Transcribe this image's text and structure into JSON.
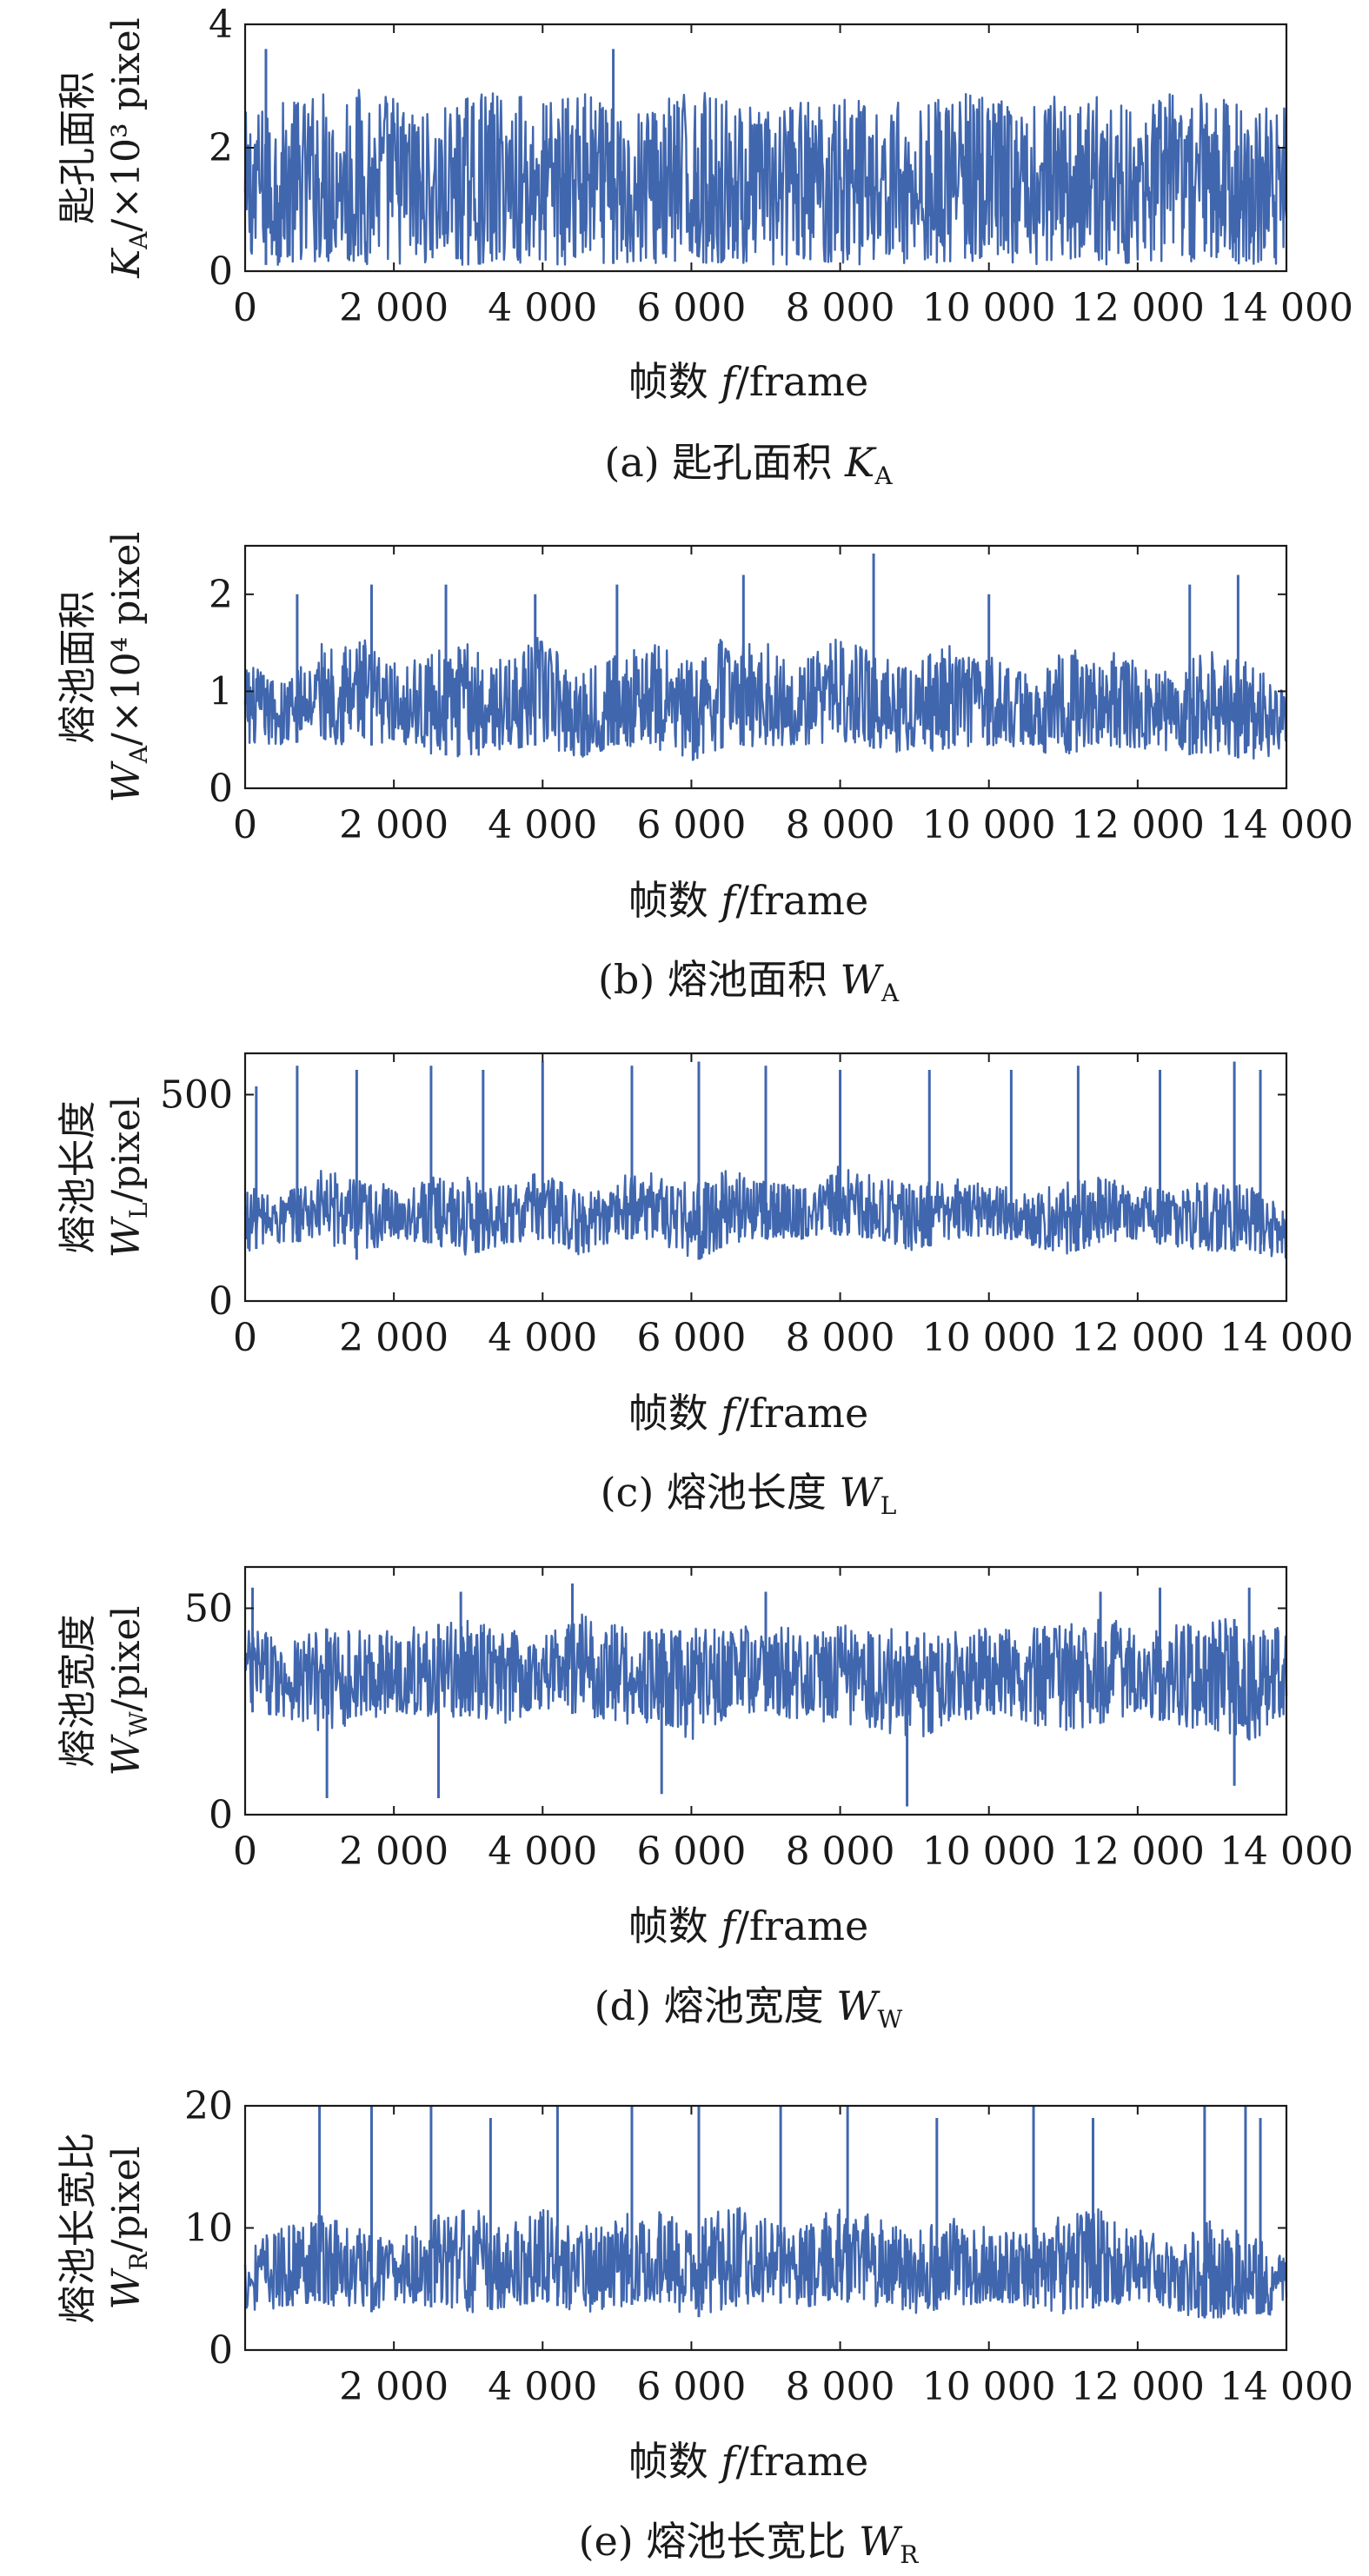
{
  "figure": {
    "x_tick_labels": [
      "0",
      "2 000",
      "4 000",
      "6 000",
      "8 000",
      "10 000",
      "12 000",
      "14 000"
    ]
  },
  "chart_data": [
    {
      "type": "line",
      "panel": "a",
      "ylabel_line1": "匙孔面积",
      "ylabel_var": "K",
      "ylabel_sub": "A",
      "ylabel_unit": "/×10³ pixel",
      "xlabel_prefix": "帧数 ",
      "xlabel_var": "f",
      "xlabel_unit": "/frame",
      "caption_prefix": "(a) 匙孔面积 ",
      "caption_var": "K",
      "caption_sub": "A",
      "xlim": [
        0,
        14000
      ],
      "ylim": [
        0,
        4
      ],
      "yticks": [
        0,
        2,
        4
      ],
      "ytick_labels": [
        "0",
        "2",
        "4"
      ],
      "xticks": [
        0,
        2000,
        4000,
        6000,
        8000,
        10000,
        12000,
        14000
      ],
      "series": [
        {
          "color": "#4066ae",
          "sampled": true,
          "x": [
            0,
            500,
            1000,
            1500,
            2000,
            2500,
            3000,
            3500,
            4000,
            4500,
            5000,
            5500,
            6000,
            6500,
            7000,
            7500,
            8000,
            8500,
            9000,
            9500,
            10000,
            10500,
            11000,
            11500,
            12000,
            12500,
            13000,
            13500,
            14000
          ],
          "upper": [
            2.6,
            2.75,
            2.95,
            3.0,
            2.9,
            2.55,
            2.85,
            2.95,
            2.8,
            2.95,
            2.6,
            2.8,
            2.95,
            2.8,
            2.6,
            2.8,
            2.95,
            2.9,
            2.65,
            2.95,
            2.85,
            2.6,
            2.9,
            2.95,
            2.7,
            2.9,
            2.95,
            2.7,
            2.7
          ],
          "lower": [
            0.1,
            0.1,
            0.15,
            0.1,
            0.12,
            0.1,
            0.1,
            0.15,
            0.1,
            0.1,
            0.12,
            0.1,
            0.1,
            0.15,
            0.1,
            0.1,
            0.12,
            0.1,
            0.1,
            0.15,
            0.1,
            0.1,
            0.12,
            0.1,
            0.1,
            0.15,
            0.1,
            0.1,
            0.1
          ],
          "peaks": [
            [
              280,
              3.6
            ],
            [
              4950,
              3.6
            ]
          ],
          "dips": []
        }
      ]
    },
    {
      "type": "line",
      "panel": "b",
      "ylabel_line1": "熔池面积",
      "ylabel_var": "W",
      "ylabel_sub": "A",
      "ylabel_unit": "/×10⁴ pixel",
      "xlabel_prefix": "帧数 ",
      "xlabel_var": "f",
      "xlabel_unit": "/frame",
      "caption_prefix": "(b) 熔池面积 ",
      "caption_var": "W",
      "caption_sub": "A",
      "xlim": [
        0,
        14000
      ],
      "ylim": [
        0,
        2.5
      ],
      "yticks": [
        0,
        1,
        2
      ],
      "ytick_labels": [
        "0",
        "1",
        "2"
      ],
      "xticks": [
        0,
        2000,
        4000,
        6000,
        8000,
        10000,
        12000,
        14000
      ],
      "series": [
        {
          "color": "#4066ae",
          "sampled": true,
          "x": [
            0,
            500,
            1000,
            1500,
            2000,
            2500,
            3000,
            3500,
            4000,
            4500,
            5000,
            5500,
            6000,
            6500,
            7000,
            7500,
            8000,
            8500,
            9000,
            9500,
            10000,
            10500,
            11000,
            11500,
            12000,
            12500,
            13000,
            13500,
            14000
          ],
          "upper": [
            1.3,
            1.1,
            1.5,
            1.6,
            1.3,
            1.4,
            1.5,
            1.3,
            1.6,
            1.2,
            1.4,
            1.5,
            1.3,
            1.6,
            1.5,
            1.3,
            1.6,
            1.4,
            1.3,
            1.5,
            1.4,
            1.2,
            1.4,
            1.5,
            1.3,
            1.2,
            1.5,
            1.3,
            1.0
          ],
          "lower": [
            0.4,
            0.45,
            0.5,
            0.4,
            0.5,
            0.35,
            0.32,
            0.4,
            0.45,
            0.3,
            0.45,
            0.4,
            0.28,
            0.45,
            0.42,
            0.45,
            0.48,
            0.4,
            0.35,
            0.42,
            0.45,
            0.38,
            0.35,
            0.4,
            0.42,
            0.35,
            0.33,
            0.3,
            0.35
          ],
          "peaks": [
            [
              700,
              2.0
            ],
            [
              1700,
              2.1
            ],
            [
              2700,
              2.1
            ],
            [
              3900,
              2.0
            ],
            [
              5000,
              2.1
            ],
            [
              6700,
              2.2
            ],
            [
              8450,
              2.42
            ],
            [
              10000,
              2.0
            ],
            [
              12700,
              2.1
            ],
            [
              13350,
              2.2
            ]
          ],
          "dips": []
        }
      ]
    },
    {
      "type": "line",
      "panel": "c",
      "ylabel_line1": "熔池长度",
      "ylabel_var": "W",
      "ylabel_sub": "L",
      "ylabel_unit": "/pixel",
      "xlabel_prefix": "帧数 ",
      "xlabel_var": "f",
      "xlabel_unit": "/frame",
      "caption_prefix": "(c) 熔池长度 ",
      "caption_var": "W",
      "caption_sub": "L",
      "xlim": [
        0,
        14000
      ],
      "ylim": [
        0,
        600
      ],
      "yticks": [
        0,
        500
      ],
      "ytick_labels": [
        "0",
        "500"
      ],
      "xticks": [
        0,
        2000,
        4000,
        6000,
        8000,
        10000,
        12000,
        14000
      ],
      "series": [
        {
          "color": "#4066ae",
          "sampled": true,
          "x": [
            0,
            500,
            1000,
            1500,
            2000,
            2500,
            3000,
            3500,
            4000,
            4500,
            5000,
            5500,
            6000,
            6500,
            7000,
            7500,
            8000,
            8500,
            9000,
            9500,
            10000,
            10500,
            11000,
            11500,
            12000,
            12500,
            13000,
            13500,
            14000
          ],
          "upper": [
            280,
            260,
            320,
            300,
            280,
            300,
            300,
            280,
            320,
            260,
            300,
            320,
            280,
            320,
            300,
            280,
            330,
            300,
            280,
            300,
            290,
            260,
            290,
            300,
            280,
            270,
            300,
            280,
            220
          ],
          "lower": [
            120,
            140,
            150,
            100,
            150,
            140,
            110,
            140,
            150,
            110,
            150,
            150,
            90,
            140,
            150,
            150,
            160,
            150,
            120,
            150,
            160,
            140,
            110,
            140,
            150,
            130,
            120,
            120,
            100
          ],
          "peaks": [
            [
              150,
              520
            ],
            [
              700,
              570
            ],
            [
              1500,
              560
            ],
            [
              2500,
              570
            ],
            [
              3200,
              560
            ],
            [
              4000,
              580
            ],
            [
              5200,
              570
            ],
            [
              6100,
              580
            ],
            [
              7000,
              570
            ],
            [
              8000,
              560
            ],
            [
              9200,
              560
            ],
            [
              10300,
              560
            ],
            [
              11200,
              570
            ],
            [
              12300,
              560
            ],
            [
              13300,
              580
            ],
            [
              13650,
              560
            ]
          ],
          "dips": []
        }
      ]
    },
    {
      "type": "line",
      "panel": "d",
      "ylabel_line1": "熔池宽度",
      "ylabel_var": "W",
      "ylabel_sub": "W",
      "ylabel_unit": "/pixel",
      "xlabel_prefix": "帧数 ",
      "xlabel_var": "f",
      "xlabel_unit": "/frame",
      "caption_prefix": "(d) 熔池宽度 ",
      "caption_var": "W",
      "caption_sub": "W",
      "xlim": [
        0,
        14000
      ],
      "ylim": [
        0,
        60
      ],
      "yticks": [
        0,
        50
      ],
      "ytick_labels": [
        "0",
        "50"
      ],
      "xticks": [
        0,
        2000,
        4000,
        6000,
        8000,
        10000,
        12000,
        14000
      ],
      "series": [
        {
          "color": "#4066ae",
          "sampled": true,
          "x": [
            0,
            500,
            1000,
            1500,
            2000,
            2500,
            3000,
            3500,
            4000,
            4500,
            5000,
            5500,
            6000,
            6500,
            7000,
            7500,
            8000,
            8500,
            9000,
            9500,
            10000,
            10500,
            11000,
            11500,
            12000,
            12500,
            13000,
            13500,
            14000
          ],
          "upper": [
            46,
            44,
            45,
            45,
            45,
            46,
            47,
            45,
            45,
            50,
            46,
            45,
            45,
            46,
            46,
            45,
            47,
            46,
            44,
            45,
            46,
            45,
            46,
            48,
            47,
            46,
            48,
            47,
            45
          ],
          "lower": [
            25,
            24,
            20,
            22,
            25,
            23,
            24,
            22,
            26,
            24,
            22,
            22,
            18,
            24,
            25,
            22,
            22,
            20,
            18,
            22,
            24,
            22,
            20,
            22,
            24,
            22,
            20,
            18,
            22
          ],
          "peaks": [
            [
              100,
              55
            ],
            [
              2900,
              54
            ],
            [
              4400,
              56
            ],
            [
              7000,
              54
            ],
            [
              11500,
              54
            ],
            [
              12300,
              55
            ],
            [
              13500,
              55
            ]
          ],
          "dips": [
            [
              1100,
              4
            ],
            [
              2600,
              4
            ],
            [
              5600,
              5
            ],
            [
              8900,
              2
            ],
            [
              13300,
              7
            ]
          ]
        }
      ]
    },
    {
      "type": "line",
      "panel": "e",
      "ylabel_line1": "熔池长宽比",
      "ylabel_var": "W",
      "ylabel_sub": "R",
      "ylabel_unit": "/pixel",
      "xlabel_prefix": "帧数 ",
      "xlabel_var": "f",
      "xlabel_unit": "/frame",
      "caption_prefix": "(e) 熔池长宽比 ",
      "caption_var": "W",
      "caption_sub": "R",
      "xlim": [
        0,
        14000
      ],
      "ylim": [
        0,
        20
      ],
      "yticks": [
        0,
        10,
        20
      ],
      "ytick_labels": [
        "0",
        "10",
        "20"
      ],
      "xticks": [
        2000,
        4000,
        6000,
        8000,
        10000,
        12000,
        14000
      ],
      "series": [
        {
          "color": "#4066ae",
          "sampled": true,
          "x": [
            0,
            500,
            1000,
            1500,
            2000,
            2500,
            3000,
            3500,
            4000,
            4500,
            5000,
            5500,
            6000,
            6500,
            7000,
            7500,
            8000,
            8500,
            9000,
            9500,
            10000,
            10500,
            11000,
            11500,
            12000,
            12500,
            13000,
            13500,
            14000
          ],
          "upper": [
            9,
            10,
            12,
            10,
            9,
            11,
            12,
            10,
            12,
            10,
            11,
            12,
            10,
            12,
            11,
            10,
            12,
            11,
            10,
            11,
            10,
            10,
            11,
            12,
            10,
            9,
            11,
            10,
            8
          ],
          "lower": [
            3,
            3.5,
            4,
            2.5,
            4,
            3.5,
            3,
            3.5,
            4,
            3,
            3.5,
            4,
            2.5,
            3.5,
            4,
            3.5,
            4,
            3.5,
            3,
            3.5,
            4,
            3.5,
            3,
            3.5,
            4,
            3,
            2.5,
            3,
            2.8
          ],
          "peaks": [
            [
              1000,
              20
            ],
            [
              1700,
              20
            ],
            [
              2500,
              20
            ],
            [
              3300,
              19
            ],
            [
              4200,
              20
            ],
            [
              5200,
              20
            ],
            [
              6100,
              20
            ],
            [
              7200,
              20
            ],
            [
              8100,
              20
            ],
            [
              9300,
              19
            ],
            [
              10600,
              20
            ],
            [
              11400,
              19
            ],
            [
              12900,
              20
            ],
            [
              13450,
              20
            ],
            [
              13650,
              19
            ]
          ],
          "dips": []
        }
      ]
    }
  ]
}
